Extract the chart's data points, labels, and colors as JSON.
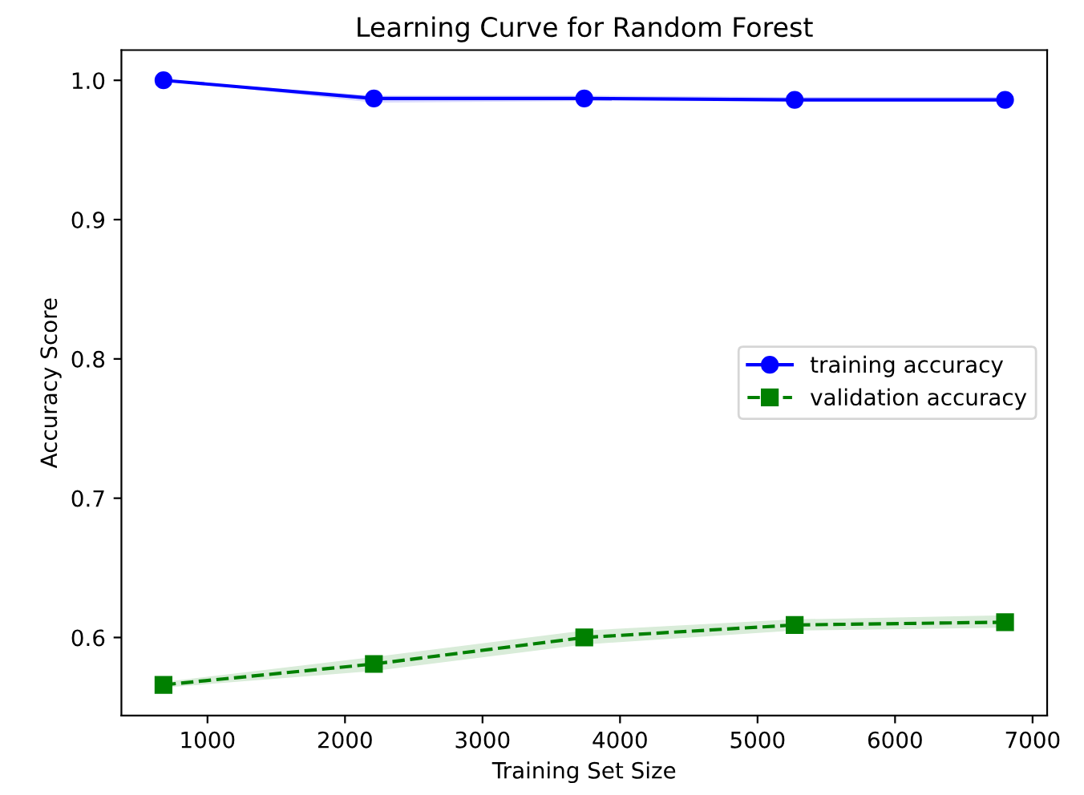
{
  "chart_data": {
    "type": "line",
    "title": "Learning Curve for Random Forest",
    "xlabel": "Training Set Size",
    "ylabel": "Accuracy Score",
    "x": [
      680,
      2210,
      3740,
      5270,
      6800
    ],
    "series": [
      {
        "name": "training accuracy",
        "color": "#0000ff",
        "values": [
          1.0,
          0.987,
          0.987,
          0.986,
          0.986
        ],
        "lower": [
          1.0,
          0.984,
          0.985,
          0.985,
          0.985
        ],
        "upper": [
          1.0,
          0.989,
          0.989,
          0.988,
          0.988
        ],
        "marker": "circle",
        "line_style": "solid"
      },
      {
        "name": "validation accuracy",
        "color": "#008000",
        "values": [
          0.566,
          0.581,
          0.6,
          0.609,
          0.611
        ],
        "lower": [
          0.564,
          0.576,
          0.595,
          0.605,
          0.607
        ],
        "upper": [
          0.568,
          0.586,
          0.605,
          0.613,
          0.616
        ],
        "marker": "square",
        "line_style": "dashed"
      }
    ],
    "xlim": [
      374,
      7106
    ],
    "ylim": [
      0.544,
      1.0217
    ],
    "xticks": [
      1000,
      2000,
      3000,
      4000,
      5000,
      6000,
      7000
    ],
    "yticks": [
      {
        "value": 0.6,
        "label": "0.6"
      },
      {
        "value": 0.7,
        "label": "0.7"
      },
      {
        "value": 0.8,
        "label": "0.8"
      },
      {
        "value": 0.9,
        "label": "0.9"
      },
      {
        "value": 1.0,
        "label": "1.0"
      }
    ],
    "grid": false,
    "legend": "right"
  }
}
